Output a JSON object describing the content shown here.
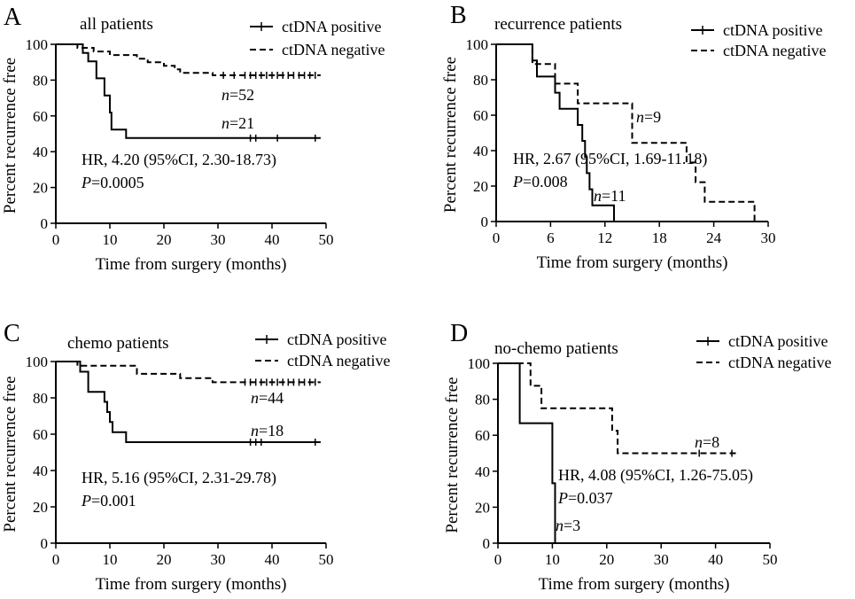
{
  "chart_data": [
    {
      "type": "line",
      "subtype": "kaplan-meier",
      "panel_label": "A",
      "title": "all patients",
      "xlabel": "Time from surgery (months)",
      "ylabel": "Percent recurrence free",
      "xlim": [
        0,
        50
      ],
      "ylim": [
        0,
        100
      ],
      "xticks": [
        0,
        10,
        20,
        30,
        40,
        50
      ],
      "yticks": [
        0,
        20,
        40,
        60,
        80,
        100
      ],
      "legend": "top-right",
      "series": [
        {
          "name": "ctDNA positive",
          "style": "solid",
          "steps": [
            [
              0,
              100
            ],
            [
              5,
              100
            ],
            [
              5,
              95.2
            ],
            [
              6,
              95.2
            ],
            [
              6,
              90.5
            ],
            [
              7.5,
              90.5
            ],
            [
              7.5,
              81
            ],
            [
              9,
              81
            ],
            [
              9,
              71.4
            ],
            [
              10,
              71.4
            ],
            [
              10,
              61.9
            ],
            [
              10.3,
              61.9
            ],
            [
              10.3,
              52.4
            ],
            [
              13,
              52.4
            ],
            [
              13,
              47.6
            ],
            [
              49,
              47.6
            ]
          ],
          "censored": [
            [
              36,
              47.6
            ],
            [
              37,
              47.6
            ],
            [
              41,
              47.6
            ],
            [
              48,
              47.6
            ]
          ],
          "n_label": "n=21"
        },
        {
          "name": "ctDNA negative",
          "style": "dashed",
          "steps": [
            [
              0,
              100
            ],
            [
              4,
              100
            ],
            [
              4,
              98
            ],
            [
              7,
              98
            ],
            [
              7,
              96
            ],
            [
              10,
              96
            ],
            [
              10,
              94
            ],
            [
              15,
              94
            ],
            [
              15,
              92
            ],
            [
              17,
              92
            ],
            [
              17,
              90
            ],
            [
              20,
              90
            ],
            [
              20,
              88
            ],
            [
              22,
              88
            ],
            [
              22,
              86
            ],
            [
              23,
              86
            ],
            [
              23,
              84
            ],
            [
              29,
              84
            ],
            [
              29,
              82.7
            ],
            [
              49,
              82.7
            ]
          ],
          "censored": [
            [
              31,
              82.7
            ],
            [
              33,
              82.7
            ],
            [
              35,
              82.7
            ],
            [
              36,
              82.7
            ],
            [
              37,
              82.7
            ],
            [
              38,
              82.7
            ],
            [
              39,
              82.7
            ],
            [
              40,
              82.7
            ],
            [
              41,
              82.7
            ],
            [
              42,
              82.7
            ],
            [
              43,
              82.7
            ],
            [
              44,
              82.7
            ],
            [
              45,
              82.7
            ],
            [
              46,
              82.7
            ],
            [
              47,
              82.7
            ],
            [
              48,
              82.7
            ]
          ],
          "n_label": "n=52"
        }
      ],
      "annotations": {
        "hr": "HR, 4.20 (95%CI, 2.30-18.73)",
        "p": "P=0.0005"
      }
    },
    {
      "type": "line",
      "subtype": "kaplan-meier",
      "panel_label": "B",
      "title": "recurrence patients",
      "xlabel": "Time from surgery (months)",
      "ylabel": "Percent recurrence free",
      "xlim": [
        0,
        30
      ],
      "ylim": [
        0,
        100
      ],
      "xticks": [
        0,
        6,
        12,
        18,
        24,
        30
      ],
      "yticks": [
        0,
        20,
        40,
        60,
        80,
        100
      ],
      "legend": "top-right",
      "series": [
        {
          "name": "ctDNA positive",
          "style": "solid",
          "steps": [
            [
              0,
              100
            ],
            [
              4,
              100
            ],
            [
              4,
              90.9
            ],
            [
              4.5,
              90.9
            ],
            [
              4.5,
              81.8
            ],
            [
              6.5,
              81.8
            ],
            [
              6.5,
              72.7
            ],
            [
              7,
              72.7
            ],
            [
              7,
              63.6
            ],
            [
              9,
              63.6
            ],
            [
              9,
              54.5
            ],
            [
              9.5,
              54.5
            ],
            [
              9.5,
              45.5
            ],
            [
              9.8,
              45.5
            ],
            [
              9.8,
              36.4
            ],
            [
              10,
              36.4
            ],
            [
              10,
              27.3
            ],
            [
              10.3,
              27.3
            ],
            [
              10.3,
              18.2
            ],
            [
              10.6,
              18.2
            ],
            [
              10.6,
              9.1
            ],
            [
              13,
              9.1
            ],
            [
              13,
              0
            ]
          ],
          "censored": [],
          "n_label": "n=11"
        },
        {
          "name": "ctDNA negative",
          "style": "dashed",
          "steps": [
            [
              0,
              100
            ],
            [
              4,
              100
            ],
            [
              4,
              88.9
            ],
            [
              6.5,
              88.9
            ],
            [
              6.5,
              77.8
            ],
            [
              9,
              77.8
            ],
            [
              9,
              66.7
            ],
            [
              15,
              66.7
            ],
            [
              15,
              44.4
            ],
            [
              21,
              44.4
            ],
            [
              21,
              33.3
            ],
            [
              22,
              33.3
            ],
            [
              22,
              22.2
            ],
            [
              23,
              22.2
            ],
            [
              23,
              11.1
            ],
            [
              28.5,
              11.1
            ],
            [
              28.5,
              0
            ]
          ],
          "censored": [],
          "n_label": "n=9"
        }
      ],
      "annotations": {
        "hr": "HR, 2.67 (95%CI, 1.69-11.18)",
        "p": "P=0.008"
      }
    },
    {
      "type": "line",
      "subtype": "kaplan-meier",
      "panel_label": "C",
      "title": "chemo patients",
      "xlabel": "Time from surgery (months)",
      "ylabel": "Percent recurrence free",
      "xlim": [
        0,
        50
      ],
      "ylim": [
        0,
        100
      ],
      "xticks": [
        0,
        10,
        20,
        30,
        40,
        50
      ],
      "yticks": [
        0,
        20,
        40,
        60,
        80,
        100
      ],
      "legend": "top-right",
      "series": [
        {
          "name": "ctDNA positive",
          "style": "solid",
          "steps": [
            [
              0,
              100
            ],
            [
              4.5,
              100
            ],
            [
              4.5,
              94.4
            ],
            [
              6,
              94.4
            ],
            [
              6,
              83.3
            ],
            [
              9,
              83.3
            ],
            [
              9,
              77.8
            ],
            [
              9.5,
              77.8
            ],
            [
              9.5,
              72.2
            ],
            [
              10,
              72.2
            ],
            [
              10,
              66.7
            ],
            [
              10.5,
              66.7
            ],
            [
              10.5,
              61.1
            ],
            [
              13,
              61.1
            ],
            [
              13,
              55.6
            ],
            [
              49,
              55.6
            ]
          ],
          "censored": [
            [
              36,
              55.6
            ],
            [
              37,
              55.6
            ],
            [
              38,
              55.6
            ],
            [
              48,
              55.6
            ]
          ],
          "n_label": "n=18"
        },
        {
          "name": "ctDNA negative",
          "style": "dashed",
          "steps": [
            [
              0,
              100
            ],
            [
              4,
              100
            ],
            [
              4,
              97.7
            ],
            [
              15,
              97.7
            ],
            [
              15,
              93.2
            ],
            [
              23,
              93.2
            ],
            [
              23,
              90.9
            ],
            [
              29,
              90.9
            ],
            [
              29,
              88.6
            ],
            [
              49,
              88.6
            ]
          ],
          "censored": [
            [
              35,
              88.6
            ],
            [
              36,
              88.6
            ],
            [
              37,
              88.6
            ],
            [
              38,
              88.6
            ],
            [
              39,
              88.6
            ],
            [
              40,
              88.6
            ],
            [
              41,
              88.6
            ],
            [
              42,
              88.6
            ],
            [
              43,
              88.6
            ],
            [
              44,
              88.6
            ],
            [
              45,
              88.6
            ],
            [
              46,
              88.6
            ],
            [
              47,
              88.6
            ],
            [
              48,
              88.6
            ]
          ],
          "n_label": "n=44"
        }
      ],
      "annotations": {
        "hr": "HR, 5.16 (95%CI, 2.31-29.78)",
        "p": "P=0.001"
      }
    },
    {
      "type": "line",
      "subtype": "kaplan-meier",
      "panel_label": "D",
      "title": "no-chemo patients",
      "xlabel": "Time from surgery (months)",
      "ylabel": "Percent recurrence free",
      "xlim": [
        0,
        50
      ],
      "ylim": [
        0,
        100
      ],
      "xticks": [
        0,
        10,
        20,
        30,
        40,
        50
      ],
      "yticks": [
        0,
        20,
        40,
        60,
        80,
        100
      ],
      "legend": "top-right",
      "series": [
        {
          "name": "ctDNA positive",
          "style": "solid",
          "steps": [
            [
              0,
              100
            ],
            [
              4,
              100
            ],
            [
              4,
              66.7
            ],
            [
              10,
              66.7
            ],
            [
              10,
              33.3
            ],
            [
              10.5,
              33.3
            ],
            [
              10.5,
              0
            ]
          ],
          "censored": [],
          "n_label": "n=3"
        },
        {
          "name": "ctDNA negative",
          "style": "dashed",
          "steps": [
            [
              0,
              100
            ],
            [
              6,
              100
            ],
            [
              6,
              87.5
            ],
            [
              8,
              87.5
            ],
            [
              8,
              75
            ],
            [
              21,
              75
            ],
            [
              21,
              62.5
            ],
            [
              22,
              62.5
            ],
            [
              22,
              50
            ],
            [
              44,
              50
            ]
          ],
          "censored": [
            [
              37,
              50
            ],
            [
              43,
              50
            ]
          ],
          "n_label": "n=8"
        }
      ],
      "annotations": {
        "hr": "HR, 4.08 (95%CI, 1.26-75.05)",
        "p": "P=0.037"
      }
    }
  ]
}
